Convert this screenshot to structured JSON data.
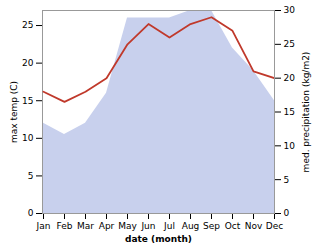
{
  "chart_data": {
    "type": "line",
    "xlabel": "date (month)",
    "ylabel": "max temp (C)",
    "y2label": "med. precipitation (kg/m2)",
    "categories": [
      "Jan",
      "Feb",
      "Mar",
      "Apr",
      "May",
      "Jun",
      "Jul",
      "Aug",
      "Sep",
      "Oct",
      "Nov",
      "Dec"
    ],
    "series": [
      {
        "type": "area",
        "color": "#c8d0ed",
        "values": [
          12,
          10.5,
          12,
          16,
          26,
          26,
          26,
          27,
          27,
          22,
          19,
          15
        ]
      },
      {
        "type": "line",
        "color": "#c0392b",
        "axis": "y2",
        "values": [
          18,
          16.5,
          18,
          20,
          25,
          28,
          26,
          28,
          29,
          27,
          21,
          20
        ]
      }
    ],
    "ylim": [
      0,
      27
    ],
    "yticks": [
      0,
      5,
      10,
      15,
      20,
      25
    ],
    "y2lim": [
      0,
      30
    ],
    "y2ticks": [
      0,
      5,
      10,
      15,
      20,
      25,
      30
    ],
    "grid": false
  }
}
